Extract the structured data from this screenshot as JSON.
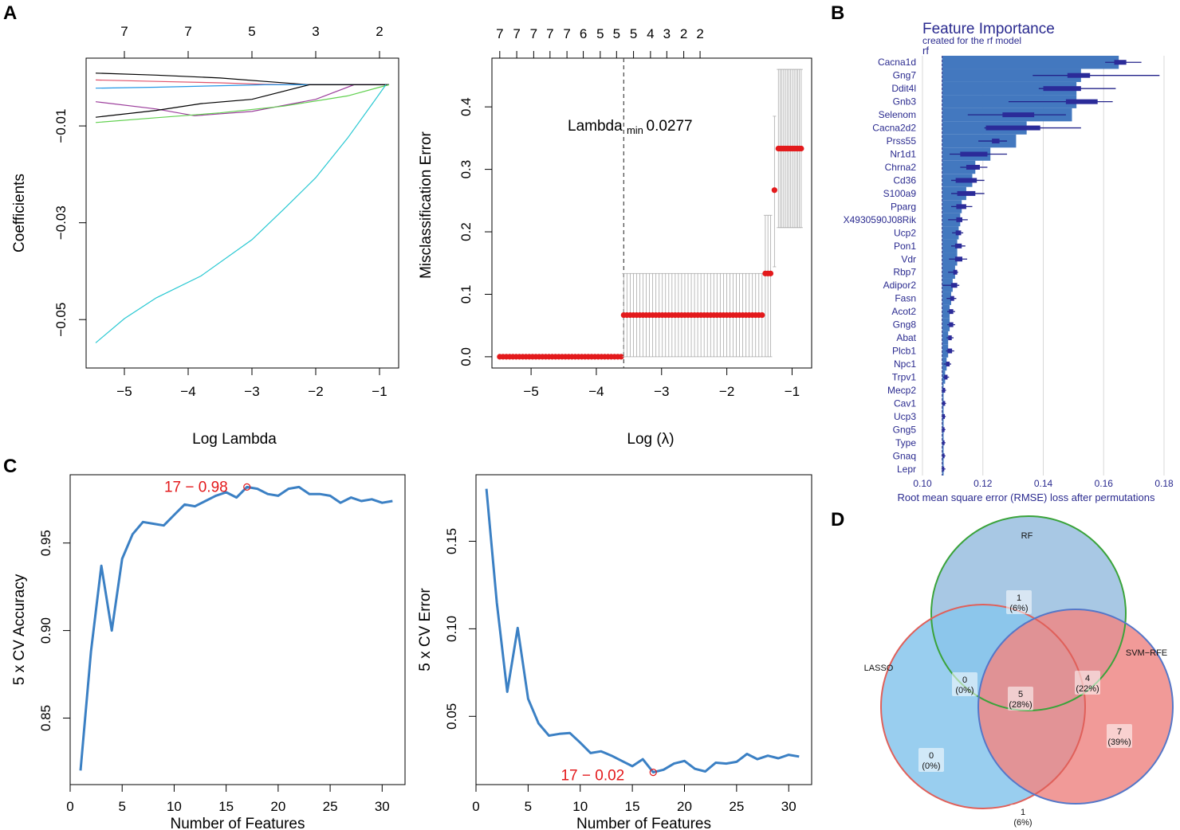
{
  "panels": {
    "A": "A",
    "B": "B",
    "C": "C",
    "D": "D"
  },
  "chart_data": [
    {
      "id": "lasso_coef_path",
      "type": "line",
      "xlabel": "Log Lambda",
      "ylabel": "Coefficients",
      "xlim": [
        -5.6,
        -0.7
      ],
      "ylim": [
        -0.06,
        0.004
      ],
      "xticks": [
        -5,
        -4,
        -3,
        -2,
        -1
      ],
      "yticks": [
        -0.01,
        -0.03,
        -0.05
      ],
      "ytick_labels": [
        "-0.01",
        "-0.03",
        "-0.05"
      ],
      "top_ticks": [
        -5,
        -4,
        -3,
        -2,
        -1
      ],
      "top_tick_labels": [
        "7",
        "7",
        "5",
        "3",
        "2"
      ],
      "series": [
        {
          "name": "black1",
          "color": "#000000",
          "points": [
            [
              -5.45,
              0.0009
            ],
            [
              -4.5,
              0.0005
            ],
            [
              -3.5,
              -0.0001
            ],
            [
              -2.8,
              -0.0008
            ],
            [
              -2.1,
              -0.0015
            ],
            [
              -0.85,
              -0.0015
            ]
          ]
        },
        {
          "name": "red",
          "color": "#df536b",
          "points": [
            [
              -5.45,
              -0.0005
            ],
            [
              -4.5,
              -0.0008
            ],
            [
              -3.5,
              -0.0011
            ],
            [
              -2.8,
              -0.0014
            ],
            [
              -2.1,
              -0.0015
            ],
            [
              -0.85,
              -0.0015
            ]
          ]
        },
        {
          "name": "blue",
          "color": "#2297e6",
          "points": [
            [
              -5.45,
              -0.0022
            ],
            [
              -4.5,
              -0.002
            ],
            [
              -3.5,
              -0.0017
            ],
            [
              -2.8,
              -0.0015
            ],
            [
              -2.1,
              -0.0015
            ],
            [
              -0.85,
              -0.0015
            ]
          ]
        },
        {
          "name": "purple",
          "color": "#9c3e9c",
          "points": [
            [
              -5.45,
              -0.005
            ],
            [
              -4.5,
              -0.0065
            ],
            [
              -3.9,
              -0.0079
            ],
            [
              -3.0,
              -0.007
            ],
            [
              -2.0,
              -0.0045
            ],
            [
              -1.4,
              -0.0015
            ],
            [
              -0.85,
              -0.0015
            ]
          ]
        },
        {
          "name": "black2",
          "color": "#000000",
          "points": [
            [
              -5.45,
              -0.0082
            ],
            [
              -4.5,
              -0.0068
            ],
            [
              -3.8,
              -0.0054
            ],
            [
              -3.0,
              -0.0045
            ],
            [
              -2.1,
              -0.0015
            ],
            [
              -0.85,
              -0.0015
            ]
          ]
        },
        {
          "name": "green",
          "color": "#61d04f",
          "points": [
            [
              -5.45,
              -0.0093
            ],
            [
              -4.5,
              -0.0083
            ],
            [
              -3.5,
              -0.0073
            ],
            [
              -2.5,
              -0.0059
            ],
            [
              -1.5,
              -0.0038
            ],
            [
              -1.0,
              -0.002
            ],
            [
              -0.85,
              -0.0015
            ]
          ]
        },
        {
          "name": "cyan",
          "color": "#28c8d2",
          "points": [
            [
              -5.45,
              -0.0548
            ],
            [
              -5.0,
              -0.0498
            ],
            [
              -4.5,
              -0.0455
            ],
            [
              -3.8,
              -0.041
            ],
            [
              -3.0,
              -0.0335
            ],
            [
              -2.5,
              -0.0272
            ],
            [
              -2.0,
              -0.0207
            ],
            [
              -1.5,
              -0.0125
            ],
            [
              -1.1,
              -0.0052
            ],
            [
              -0.9,
              -0.0015
            ]
          ]
        }
      ]
    },
    {
      "id": "lasso_cv_error",
      "type": "scatter",
      "xlabel": "Log",
      "xlabel_symbol": "(λ)",
      "ylabel": "Misclassification Error",
      "xlim": [
        -5.6,
        -0.7
      ],
      "ylim": [
        -0.018,
        0.478
      ],
      "xticks": [
        -5,
        -4,
        -3,
        -2,
        -1
      ],
      "yticks": [
        0.0,
        0.1,
        0.2,
        0.3,
        0.4
      ],
      "ytick_labels": [
        "0.0",
        "0.1",
        "0.2",
        "0.3",
        "0.4"
      ],
      "top_ticks": [
        -5.48,
        -5.22,
        -4.96,
        -4.71,
        -4.45,
        -4.2,
        -3.94,
        -3.69,
        -3.43,
        -3.17,
        -2.92,
        -2.66,
        -2.41
      ],
      "top_tick_labels": [
        "7",
        "7",
        "7",
        "7",
        "7",
        "6",
        "5",
        "5",
        "5",
        "4",
        "3",
        "2",
        "2"
      ],
      "lambda_min_log": -3.58,
      "annotation_main": "Lambda",
      "annotation_sub": "min",
      "annotation_value": "0.0277",
      "segments": [
        {
          "x_from": -5.48,
          "x_to": -3.62,
          "n": 38,
          "y": 0.0,
          "lo": 0.0,
          "hi": 0.0
        },
        {
          "x_from": -3.58,
          "x_to": -1.46,
          "n": 44,
          "y": 0.0667,
          "lo": 0.0,
          "hi": 0.1333
        },
        {
          "x_from": -1.41,
          "x_to": -1.33,
          "n": 3,
          "y": 0.1333,
          "lo": 0.0,
          "hi": 0.2265
        },
        {
          "x_from": -1.27,
          "x_to": -1.27,
          "n": 1,
          "y": 0.2667,
          "lo": 0.144,
          "hi": 0.385
        },
        {
          "x_from": -1.21,
          "x_to": -0.86,
          "n": 14,
          "y": 0.3333,
          "lo": 0.2067,
          "hi": 0.46
        }
      ]
    },
    {
      "id": "rf_feature_importance",
      "type": "bar",
      "title": "Feature Importance",
      "subtitle": "created for the rf model",
      "model_label": "rf",
      "xlabel": "Root mean square error (RMSE) loss after permutations",
      "xlim": [
        0.1,
        0.18
      ],
      "xticks": [
        0.1,
        0.12,
        0.14,
        0.16,
        0.18
      ],
      "xtick_labels": [
        "0.10",
        "0.12",
        "0.14",
        "0.16",
        "0.18"
      ],
      "baseline": 0.1065,
      "categories": [
        "Cacna1d",
        "Gng7",
        "Ddit4l",
        "Gnb3",
        "Selenom",
        "Cacna2d2",
        "Prss55",
        "Nr1d1",
        "Chrna2",
        "Cd36",
        "S100a9",
        "Pparg",
        "X4930590J08Rik",
        "Ucp2",
        "Pon1",
        "Vdr",
        "Rbp7",
        "Adipor2",
        "Fasn",
        "Acot2",
        "Gng8",
        "Abat",
        "Plcb1",
        "Npc1",
        "Trpv1",
        "Mecp2",
        "Cav1",
        "Ucp3",
        "Gng5",
        "Type",
        "Gnaq",
        "Lepr"
      ],
      "values": [
        0.165,
        0.1525,
        0.151,
        0.151,
        0.1495,
        0.1345,
        0.131,
        0.1225,
        0.1175,
        0.1165,
        0.1145,
        0.113,
        0.1125,
        0.112,
        0.1115,
        0.1115,
        0.1108,
        0.11,
        0.1095,
        0.109,
        0.109,
        0.1085,
        0.1085,
        0.108,
        0.1075,
        0.107,
        0.107,
        0.107,
        0.107,
        0.107,
        0.107,
        0.107
      ],
      "box_lo": [
        0.1635,
        0.148,
        0.14,
        0.1475,
        0.1265,
        0.121,
        0.123,
        0.1125,
        0.1145,
        0.111,
        0.1115,
        0.1112,
        0.1112,
        0.111,
        0.1108,
        0.1108,
        0.1102,
        0.1095,
        0.1092,
        0.1088,
        0.1088,
        0.1085,
        0.1083,
        0.1078,
        0.1072,
        0.1067,
        0.1067,
        0.1067,
        0.1067,
        0.1067,
        0.1067,
        0.1067
      ],
      "box_hi": [
        0.1675,
        0.1555,
        0.1525,
        0.158,
        0.137,
        0.139,
        0.1255,
        0.1215,
        0.119,
        0.118,
        0.1175,
        0.1145,
        0.1132,
        0.1128,
        0.113,
        0.1132,
        0.1115,
        0.1115,
        0.1105,
        0.1102,
        0.1102,
        0.1097,
        0.1098,
        0.109,
        0.1083,
        0.1075,
        0.1075,
        0.1074,
        0.1073,
        0.1073,
        0.1073,
        0.1072
      ],
      "wmin": [
        0.1605,
        0.1365,
        0.1385,
        0.1285,
        0.115,
        0.1205,
        0.1185,
        0.109,
        0.1125,
        0.1095,
        0.1095,
        0.1095,
        0.1085,
        0.1098,
        0.1095,
        0.1088,
        0.1085,
        0.1065,
        0.108,
        0.1082,
        0.1082,
        0.108,
        0.1078,
        0.107,
        0.1068,
        0.1063,
        0.1063,
        0.1063,
        0.1063,
        0.1063,
        0.1063,
        0.1063
      ],
      "wmax": [
        0.1725,
        0.1785,
        0.164,
        0.163,
        0.1475,
        0.1525,
        0.128,
        0.128,
        0.1215,
        0.1205,
        0.1205,
        0.1165,
        0.115,
        0.1135,
        0.1142,
        0.1148,
        0.1118,
        0.1122,
        0.1112,
        0.1108,
        0.1108,
        0.1103,
        0.1105,
        0.1095,
        0.1088,
        0.1078,
        0.1078,
        0.1077,
        0.1076,
        0.1076,
        0.1076,
        0.1076
      ]
    },
    {
      "id": "svm_rfe_accuracy",
      "type": "line",
      "xlabel": "Number of Features",
      "ylabel": "5 x CV Accuracy",
      "xlim": [
        0,
        32.2
      ],
      "ylim": [
        0.812,
        0.989
      ],
      "xticks": [
        0,
        5,
        10,
        15,
        20,
        25,
        30
      ],
      "yticks": [
        0.85,
        0.9,
        0.95
      ],
      "ytick_labels": [
        "0.85",
        "0.90",
        "0.95"
      ],
      "x": [
        1,
        2,
        3,
        4,
        5,
        6,
        7,
        8,
        9,
        10,
        11,
        12,
        13,
        14,
        15,
        16,
        17,
        18,
        19,
        20,
        21,
        22,
        23,
        24,
        25,
        26,
        27,
        28,
        29,
        30,
        31
      ],
      "values": [
        0.82,
        0.888,
        0.937,
        0.9,
        0.941,
        0.955,
        0.962,
        0.961,
        0.96,
        0.966,
        0.972,
        0.971,
        0.974,
        0.977,
        0.979,
        0.976,
        0.982,
        0.981,
        0.978,
        0.977,
        0.981,
        0.982,
        0.978,
        0.978,
        0.977,
        0.973,
        0.976,
        0.974,
        0.975,
        0.973,
        0.974
      ],
      "highlight_x": 17,
      "highlight_y": 0.982,
      "annotation": "17 − 0.98"
    },
    {
      "id": "svm_rfe_error",
      "type": "line",
      "xlabel": "Number of Features",
      "ylabel": "5 x CV Error",
      "xlim": [
        0,
        32.2
      ],
      "ylim": [
        0.011,
        0.188
      ],
      "xticks": [
        0,
        5,
        10,
        15,
        20,
        25,
        30
      ],
      "yticks": [
        0.05,
        0.1,
        0.15
      ],
      "ytick_labels": [
        "0.05",
        "0.10",
        "0.15"
      ],
      "x": [
        1,
        2,
        3,
        4,
        5,
        6,
        7,
        8,
        9,
        10,
        11,
        12,
        13,
        14,
        15,
        16,
        17,
        18,
        19,
        20,
        21,
        22,
        23,
        24,
        25,
        26,
        27,
        28,
        29,
        30,
        31
      ],
      "values": [
        0.18,
        0.115,
        0.064,
        0.1005,
        0.06,
        0.046,
        0.039,
        0.04,
        0.0405,
        0.035,
        0.029,
        0.03,
        0.0275,
        0.0245,
        0.0215,
        0.0255,
        0.018,
        0.0195,
        0.023,
        0.0245,
        0.02,
        0.0185,
        0.0235,
        0.023,
        0.024,
        0.0285,
        0.0255,
        0.0275,
        0.026,
        0.028,
        0.027
      ],
      "highlight_x": 17,
      "highlight_y": 0.018,
      "annotation": "17 − 0.02"
    }
  ],
  "venn": {
    "set_labels": {
      "rf": "RF",
      "lasso": "LASSO",
      "svm": "SVM−RFE"
    },
    "regions": [
      {
        "id": "rf_only",
        "count": "1",
        "pct": "(6%)"
      },
      {
        "id": "rf_lasso",
        "count": "0",
        "pct": "(0%)"
      },
      {
        "id": "rf_svm",
        "count": "4",
        "pct": "(22%)"
      },
      {
        "id": "all_three",
        "count": "5",
        "pct": "(28%)"
      },
      {
        "id": "lasso_only",
        "count": "0",
        "pct": "(0%)"
      },
      {
        "id": "svm_only",
        "count": "7",
        "pct": "(39%)"
      },
      {
        "id": "lasso_svm",
        "count": "1",
        "pct": "(6%)"
      }
    ],
    "colors": {
      "rf_fill": "#a8c8e4",
      "rf_edge": "#3aa33a",
      "lasso_fill": "#87c6ec",
      "lasso_edge": "#e0605a",
      "svm_fill": "#ee8886",
      "svm_edge": "#5577c8"
    }
  }
}
